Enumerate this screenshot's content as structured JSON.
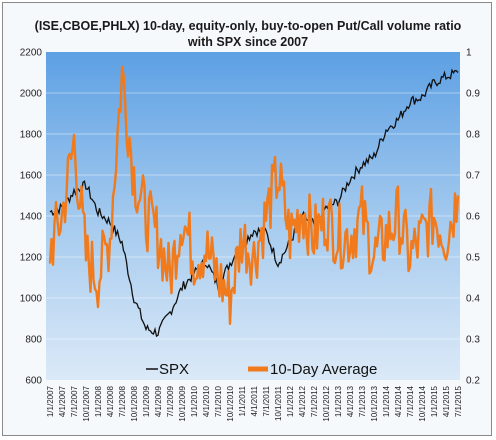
{
  "chart_data": {
    "type": "line",
    "title": "(ISE,CBOE,PHLX) 10-day, equity-only, buy-to-open Put/Call volume ratio",
    "subtitle": "with SPX since 2007",
    "left_axis": {
      "ylim": [
        600,
        2200
      ],
      "ticks": [
        "600",
        "800",
        "1000",
        "1200",
        "1400",
        "1600",
        "1800",
        "2000",
        "2200"
      ]
    },
    "right_axis": {
      "ylim": [
        0.2,
        1.0
      ],
      "ticks": [
        "0.2",
        "0.3",
        "0.4",
        "0.5",
        "0.6",
        "0.7",
        "0.8",
        "0.9",
        "1"
      ]
    },
    "x_ticks": [
      "1/1/2007",
      "4/1/2007",
      "7/1/2007",
      "10/1/2007",
      "1/1/2008",
      "4/1/2008",
      "7/1/2008",
      "10/1/2008",
      "1/1/2009",
      "4/1/2009",
      "7/1/2009",
      "10/1/2009",
      "1/1/2010",
      "4/1/2010",
      "7/1/2010",
      "10/1/2010",
      "1/1/2011",
      "4/1/2011",
      "7/1/2011",
      "10/1/2011",
      "1/1/2012",
      "4/1/2012",
      "7/1/2012",
      "10/1/2012",
      "1/1/2013",
      "4/1/2013",
      "7/1/2013",
      "10/1/2013",
      "1/1/2014",
      "4/1/2014",
      "7/1/2014",
      "10/1/2014",
      "1/1/2015",
      "4/1/2015",
      "7/1/2015"
    ],
    "grid": true,
    "legend_position": "bottom-center",
    "series": [
      {
        "name": "SPX",
        "axis": "left",
        "color": "#111111",
        "x": [
          "1/1/2007",
          "4/1/2007",
          "7/1/2007",
          "10/1/2007",
          "1/1/2008",
          "4/1/2008",
          "7/1/2008",
          "10/1/2008",
          "1/1/2009",
          "4/1/2009",
          "7/1/2009",
          "10/1/2009",
          "1/1/2010",
          "4/1/2010",
          "7/1/2010",
          "10/1/2010",
          "1/1/2011",
          "4/1/2011",
          "7/1/2011",
          "10/1/2011",
          "1/1/2012",
          "4/1/2012",
          "7/1/2012",
          "10/1/2012",
          "1/1/2013",
          "4/1/2013",
          "7/1/2013",
          "10/1/2013",
          "1/1/2014",
          "4/1/2014",
          "7/1/2014",
          "10/1/2014",
          "1/1/2015",
          "4/1/2015",
          "7/1/2015"
        ],
        "values": [
          1420,
          1440,
          1520,
          1550,
          1420,
          1370,
          1270,
          1000,
          850,
          830,
          930,
          1050,
          1120,
          1180,
          1060,
          1170,
          1260,
          1330,
          1320,
          1170,
          1270,
          1400,
          1360,
          1440,
          1470,
          1580,
          1650,
          1690,
          1820,
          1870,
          1960,
          1980,
          2050,
          2080,
          2100
        ]
      },
      {
        "name": "10-Day Average",
        "axis": "right",
        "color": "#f07a1c",
        "x": [
          "1/1/2007",
          "4/1/2007",
          "7/1/2007",
          "10/1/2007",
          "1/1/2008",
          "4/1/2008",
          "7/1/2008",
          "10/1/2008",
          "1/1/2009",
          "4/1/2009",
          "7/1/2009",
          "10/1/2009",
          "1/1/2010",
          "4/1/2010",
          "7/1/2010",
          "10/1/2010",
          "1/1/2011",
          "4/1/2011",
          "7/1/2011",
          "10/1/2011",
          "1/1/2012",
          "4/1/2012",
          "7/1/2012",
          "10/1/2012",
          "1/1/2013",
          "4/1/2013",
          "7/1/2013",
          "10/1/2013",
          "1/1/2014",
          "4/1/2014",
          "7/1/2014",
          "10/1/2014",
          "1/1/2015",
          "4/1/2015",
          "7/1/2015"
        ],
        "values": [
          0.52,
          0.6,
          0.78,
          0.5,
          0.45,
          0.55,
          0.95,
          0.7,
          0.6,
          0.55,
          0.45,
          0.6,
          0.5,
          0.52,
          0.45,
          0.4,
          0.55,
          0.5,
          0.6,
          0.7,
          0.55,
          0.62,
          0.55,
          0.6,
          0.55,
          0.55,
          0.6,
          0.5,
          0.55,
          0.6,
          0.5,
          0.55,
          0.6,
          0.55,
          0.65
        ]
      }
    ]
  }
}
